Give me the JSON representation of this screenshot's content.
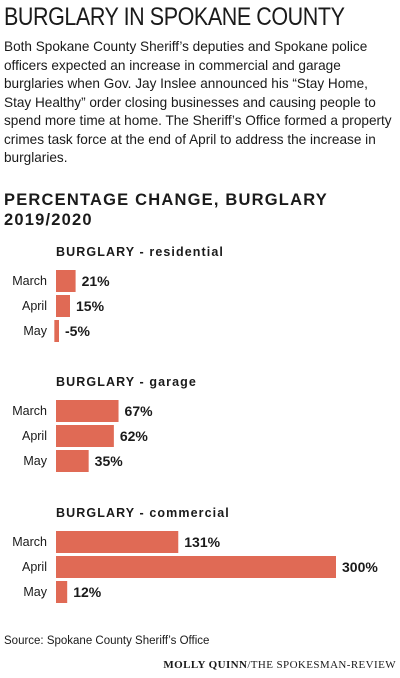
{
  "headline": "BURGLARY IN SPOKANE COUNTY",
  "intro": "Both Spokane County Sheriff’s deputies and Spokane police officers expected an increase in commercial and garage burglaries when Gov. Jay Inslee announced his “Stay Home, Stay Healthy” order closing businesses and causing people to spend more time at home. The Sheriff’s Office formed a property crimes task force at the end of April to address the increase in burglaries.",
  "chart_title_line1": "PERCENTAGE CHANGE, BURGLARY",
  "chart_title_line2": "2019/2020",
  "source": "Source: Spokane County Sheriff’s Office",
  "credit": {
    "name": "MOLLY QUINN",
    "separator": "/",
    "outlet": "THE SPOKESMAN-REVIEW"
  },
  "colors": {
    "bar": "#e06a55",
    "text": "#1a1a1a"
  },
  "chart_data": [
    {
      "type": "bar",
      "orientation": "horizontal",
      "title": "BURGLARY - residential",
      "categories": [
        "March",
        "April",
        "May"
      ],
      "values": [
        21,
        15,
        -5
      ],
      "labels": [
        "21%",
        "15%",
        "-5%"
      ]
    },
    {
      "type": "bar",
      "orientation": "horizontal",
      "title": "BURGLARY - garage",
      "categories": [
        "March",
        "April",
        "May"
      ],
      "values": [
        67,
        62,
        35
      ],
      "labels": [
        "67%",
        "62%",
        "35%"
      ]
    },
    {
      "type": "bar",
      "orientation": "horizontal",
      "title": "BURGLARY - commercial",
      "categories": [
        "March",
        "April",
        "May"
      ],
      "values": [
        131,
        300,
        12
      ],
      "labels": [
        "131%",
        "300%",
        "12%"
      ]
    }
  ]
}
